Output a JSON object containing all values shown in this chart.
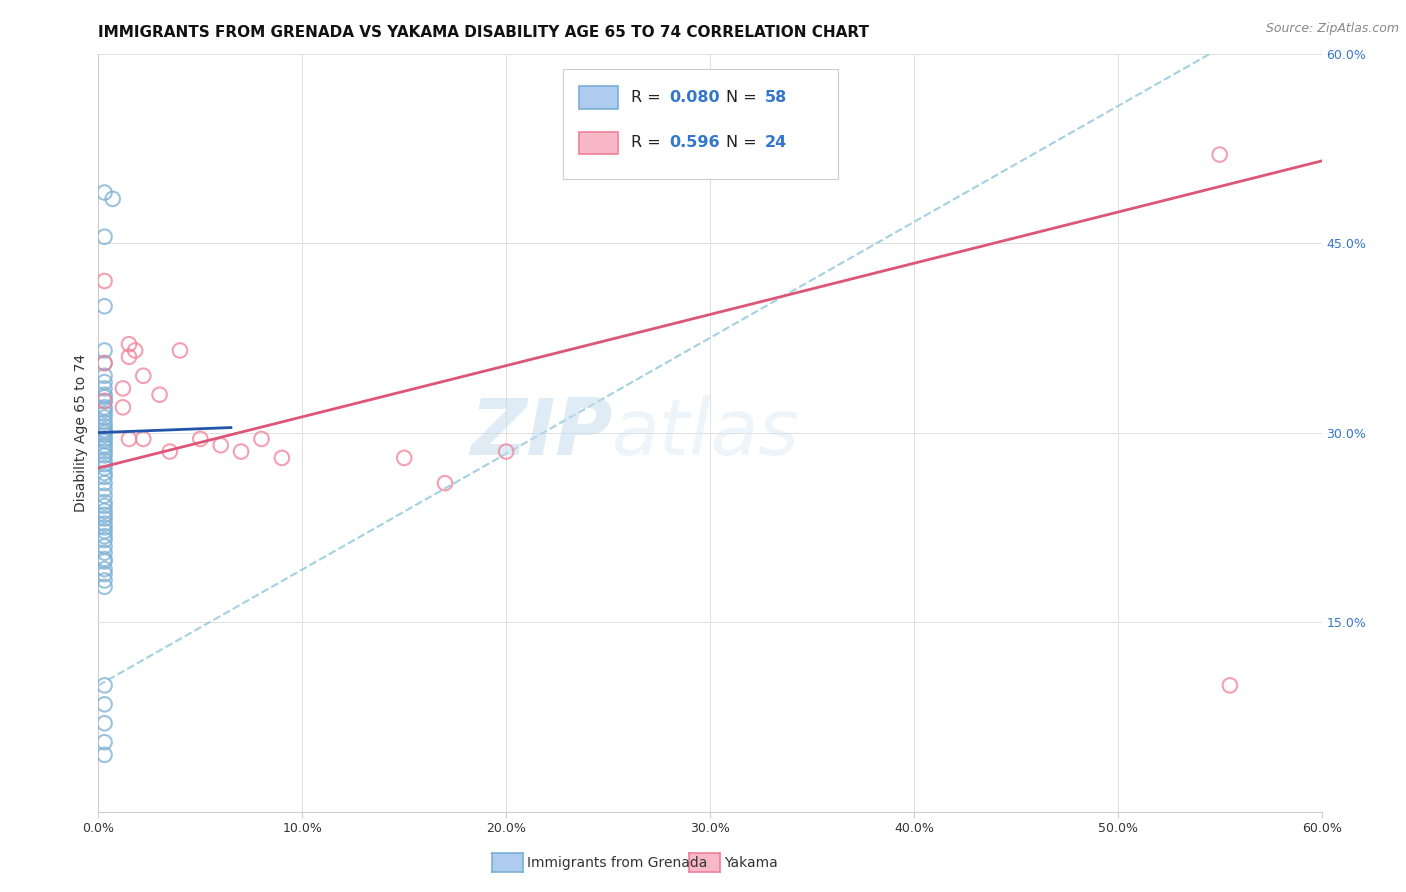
{
  "title": "IMMIGRANTS FROM GRENADA VS YAKAMA DISABILITY AGE 65 TO 74 CORRELATION CHART",
  "source": "Source: ZipAtlas.com",
  "ylabel": "Disability Age 65 to 74",
  "xlim": [
    0.0,
    0.6
  ],
  "ylim": [
    0.0,
    0.6
  ],
  "xtick_vals": [
    0.0,
    0.1,
    0.2,
    0.3,
    0.4,
    0.5,
    0.6
  ],
  "xtick_labels": [
    "0.0%",
    "10.0%",
    "20.0%",
    "30.0%",
    "40.0%",
    "50.0%",
    "60.0%"
  ],
  "ytick_vals": [
    0.15,
    0.3,
    0.45,
    0.6
  ],
  "ytick_labels": [
    "15.0%",
    "30.0%",
    "45.0%",
    "60.0%"
  ],
  "watermark_zip": "ZIP",
  "watermark_atlas": "atlas",
  "legend_entry1": {
    "r": "0.080",
    "n": "58",
    "color": "#aeccf0",
    "edge": "#7bafd4",
    "label": "Immigrants from Grenada"
  },
  "legend_entry2": {
    "r": "0.596",
    "n": "24",
    "color": "#f8b8c8",
    "edge": "#f08098",
    "label": "Yakama"
  },
  "blue_scatter_x": [
    0.003,
    0.007,
    0.003,
    0.003,
    0.003,
    0.003,
    0.003,
    0.003,
    0.003,
    0.003,
    0.003,
    0.003,
    0.003,
    0.003,
    0.003,
    0.003,
    0.003,
    0.003,
    0.003,
    0.003,
    0.003,
    0.003,
    0.003,
    0.003,
    0.003,
    0.003,
    0.003,
    0.003,
    0.003,
    0.003,
    0.003,
    0.003,
    0.003,
    0.003,
    0.003,
    0.003,
    0.003,
    0.003,
    0.003,
    0.003,
    0.003,
    0.003,
    0.003,
    0.003,
    0.003,
    0.003,
    0.003,
    0.003,
    0.003,
    0.003,
    0.003,
    0.003,
    0.003,
    0.003,
    0.003,
    0.003,
    0.003,
    0.003
  ],
  "blue_scatter_y": [
    0.49,
    0.485,
    0.455,
    0.4,
    0.365,
    0.355,
    0.345,
    0.34,
    0.335,
    0.33,
    0.328,
    0.325,
    0.32,
    0.318,
    0.315,
    0.312,
    0.308,
    0.305,
    0.302,
    0.3,
    0.298,
    0.295,
    0.293,
    0.29,
    0.288,
    0.285,
    0.282,
    0.278,
    0.275,
    0.272,
    0.268,
    0.265,
    0.26,
    0.255,
    0.25,
    0.245,
    0.242,
    0.238,
    0.235,
    0.232,
    0.228,
    0.225,
    0.222,
    0.218,
    0.215,
    0.21,
    0.205,
    0.2,
    0.198,
    0.192,
    0.188,
    0.183,
    0.178,
    0.1,
    0.085,
    0.07,
    0.055,
    0.045
  ],
  "pink_scatter_x": [
    0.003,
    0.003,
    0.003,
    0.012,
    0.012,
    0.015,
    0.015,
    0.015,
    0.018,
    0.022,
    0.022,
    0.03,
    0.035,
    0.04,
    0.05,
    0.06,
    0.07,
    0.08,
    0.09,
    0.15,
    0.17,
    0.2,
    0.55,
    0.555
  ],
  "pink_scatter_y": [
    0.42,
    0.355,
    0.325,
    0.335,
    0.32,
    0.37,
    0.36,
    0.295,
    0.365,
    0.345,
    0.295,
    0.33,
    0.285,
    0.365,
    0.295,
    0.29,
    0.285,
    0.295,
    0.28,
    0.28,
    0.26,
    0.285,
    0.52,
    0.1
  ],
  "blue_line_x": [
    0.0,
    0.065
  ],
  "blue_line_y": [
    0.3,
    0.304
  ],
  "pink_line_x": [
    0.0,
    0.6
  ],
  "pink_line_y": [
    0.272,
    0.515
  ],
  "dashed_line_x": [
    0.0,
    0.6
  ],
  "dashed_line_y": [
    0.1,
    0.65
  ],
  "blue_scatter_color": "#7bafd4",
  "pink_scatter_color": "#f08098",
  "blue_line_color": "#2255aa",
  "pink_line_color": "#dd5577",
  "dashed_color": "#99ccdd",
  "grid_color": "#e0e0e0",
  "right_tick_color": "#3377cc",
  "title_fontsize": 11,
  "tick_fontsize": 9,
  "axis_label_fontsize": 10
}
